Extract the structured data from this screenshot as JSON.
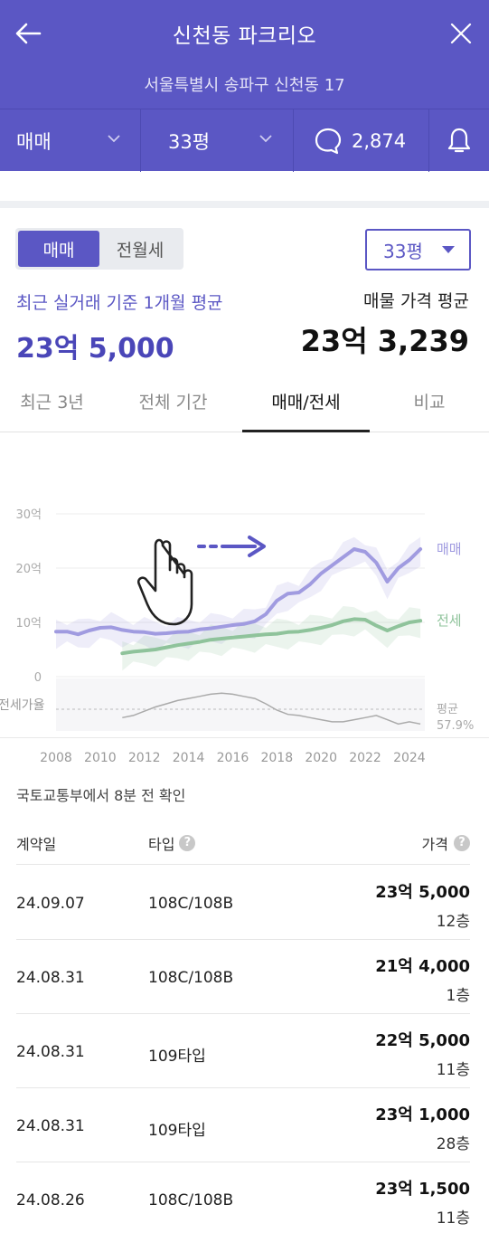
{
  "header": {
    "title": "신천동 파크리오",
    "address": "서울특별시 송파구 신천동 17"
  },
  "filters": {
    "deal_type": "매매",
    "size": "33평",
    "comment_count": "2,874"
  },
  "toggle": {
    "option1": "매매",
    "option2": "전월세",
    "selected": "매매"
  },
  "size_select": "33평",
  "summary": {
    "recent_label": "최근 실거래 기준 1개월 평균",
    "recent_price": "23억 5,000",
    "listing_label": "매물 가격 평균",
    "listing_price": "23억 3,239"
  },
  "tabs": [
    {
      "label": "최근 3년",
      "active": false
    },
    {
      "label": "전체 기간",
      "active": false
    },
    {
      "label": "매매/전세",
      "active": true
    },
    {
      "label": "비교",
      "active": false
    }
  ],
  "chart_data": {
    "type": "line",
    "y_ticks": [
      "30억",
      "20억",
      "10억",
      "0"
    ],
    "ylim": [
      0,
      30
    ],
    "y_unit": "억",
    "x_ticks": [
      "2008",
      "2010",
      "2012",
      "2014",
      "2016",
      "2018",
      "2020",
      "2022",
      "2024"
    ],
    "xlim": [
      2008,
      2024.7
    ],
    "series": [
      {
        "name": "매매",
        "color": "#a09be0",
        "x": [
          2008,
          2008.5,
          2009,
          2009.5,
          2010,
          2010.5,
          2011,
          2011.5,
          2012,
          2012.5,
          2013,
          2013.5,
          2014,
          2014.5,
          2015,
          2015.5,
          2016,
          2016.5,
          2017,
          2017.5,
          2018,
          2018.5,
          2019,
          2019.5,
          2020,
          2020.5,
          2021,
          2021.5,
          2022,
          2022.5,
          2023,
          2023.5,
          2024,
          2024.5
        ],
        "values": [
          8.3,
          8.3,
          7.8,
          8.5,
          9.0,
          9.1,
          8.6,
          8.3,
          8.2,
          7.9,
          8.0,
          8.2,
          8.3,
          8.7,
          8.9,
          9.2,
          9.5,
          9.7,
          10.2,
          11.5,
          14.0,
          15.3,
          15.5,
          17.0,
          19.0,
          20.5,
          22.0,
          23.5,
          23.0,
          21.0,
          17.5,
          20.0,
          21.5,
          23.5
        ]
      },
      {
        "name": "전세",
        "color": "#8fc39b",
        "x": [
          2011,
          2011.5,
          2012,
          2012.5,
          2013,
          2013.5,
          2014,
          2014.5,
          2015,
          2015.5,
          2016,
          2016.5,
          2017,
          2017.5,
          2018,
          2018.5,
          2019,
          2019.5,
          2020,
          2020.5,
          2021,
          2021.5,
          2022,
          2022.5,
          2023,
          2023.5,
          2024,
          2024.5
        ],
        "values": [
          4.3,
          4.6,
          4.8,
          5.0,
          5.4,
          5.8,
          6.1,
          6.4,
          6.8,
          7.0,
          7.2,
          7.4,
          7.6,
          7.8,
          7.9,
          8.2,
          8.3,
          8.6,
          9.0,
          9.5,
          10.2,
          10.6,
          10.5,
          9.4,
          8.5,
          9.3,
          10.0,
          10.3
        ]
      }
    ],
    "series_labels": [
      "매매",
      "전세"
    ],
    "ratio": {
      "label": "전세가율",
      "avg_label": "평균",
      "avg_value": "57.9%",
      "values": [
        50,
        52,
        56,
        60,
        63,
        66,
        68,
        70,
        72,
        73,
        72,
        70,
        68,
        63,
        57,
        53,
        52,
        50,
        48,
        46,
        46,
        48,
        50,
        52,
        48,
        44,
        46,
        44
      ]
    }
  },
  "source_note": "국토교통부에서 8분 전 확인",
  "table": {
    "headers": {
      "date": "계약일",
      "type": "타입",
      "price": "가격"
    },
    "rows": [
      {
        "date": "24.09.07",
        "type": "108C/108B",
        "price": "23억 5,000",
        "floor": "12층"
      },
      {
        "date": "24.08.31",
        "type": "108C/108B",
        "price": "21억 4,000",
        "floor": "1층"
      },
      {
        "date": "24.08.31",
        "type": "109타입",
        "price": "22억 5,000",
        "floor": "11층"
      },
      {
        "date": "24.08.31",
        "type": "109타입",
        "price": "23억 1,000",
        "floor": "28층"
      },
      {
        "date": "24.08.26",
        "type": "108C/108B",
        "price": "23억 1,500",
        "floor": "11층"
      }
    ]
  }
}
